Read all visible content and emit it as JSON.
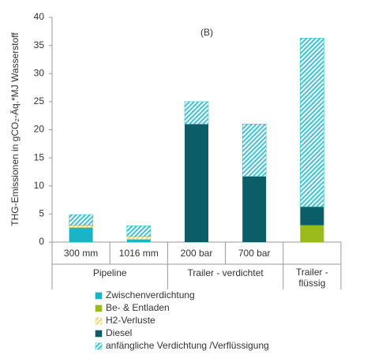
{
  "chart_data": {
    "type": "stacked_bar",
    "y_label": "THG-Emissionen in gCO₂-Äq.*MJ Wasserstoff",
    "annotation": "(B)",
    "categories": [
      "300 mm",
      "1016 mm",
      "200 bar",
      "700 bar",
      null
    ],
    "groups": [
      {
        "label": "Pipeline",
        "size": 2
      },
      {
        "label": "Trailer - verdichtet",
        "size": 2
      },
      {
        "label": "Trailer - flüssig",
        "size": 1
      }
    ],
    "series": [
      {
        "name": "Zwischenverdichtung",
        "color": "#1ab4c6",
        "values": [
          2.6,
          0.5,
          0,
          0,
          0
        ]
      },
      {
        "name": "Be- & Entladen",
        "color": "#9bbb1c",
        "values": [
          0,
          0,
          0,
          0,
          3
        ]
      },
      {
        "name": "H2-Verluste",
        "color": "#e8d870",
        "hatch": true,
        "values": [
          0.4,
          0.5,
          0,
          0,
          0
        ]
      },
      {
        "name": "Diesel",
        "color": "#0b5d68",
        "values": [
          0,
          0,
          21,
          11.7,
          3.3
        ]
      },
      {
        "name": "anfängliche Verdichtung /Verflüssigung",
        "color": "#3ec3d3",
        "hatch": true,
        "values": [
          1.9,
          1.9,
          4,
          9.3,
          30
        ]
      }
    ],
    "ylim": [
      0,
      40
    ],
    "yticks": [
      0,
      5,
      10,
      15,
      20,
      25,
      30,
      35,
      40
    ]
  }
}
